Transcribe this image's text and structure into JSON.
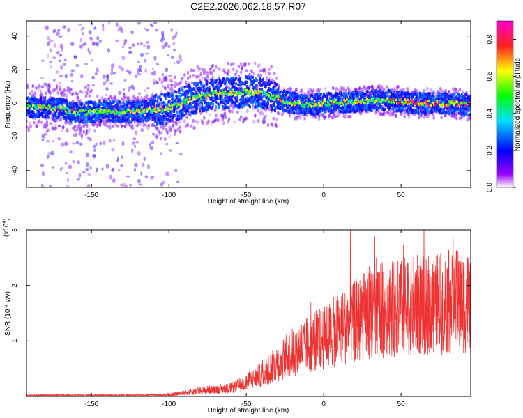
{
  "figure_title": "C2E2.2026.062.18.57.R07",
  "chart_data": [
    {
      "type": "heatmap",
      "name": "spectrogram",
      "title": "C2E2.2026.062.18.57.R07",
      "xlabel": "Height of straight line (km)",
      "ylabel": "Frequency (Hz)",
      "xlim": [
        -192,
        95
      ],
      "ylim": [
        -50,
        49
      ],
      "xticks": [
        -150,
        -100,
        -50,
        0,
        50
      ],
      "yticks": [
        -40,
        -20,
        0,
        20,
        40
      ],
      "ridge": {
        "x": [
          -192,
          -170,
          -160,
          -150,
          -140,
          -120,
          -100,
          -90,
          -80,
          -70,
          -60,
          -50,
          -40,
          -30,
          -20,
          -10,
          0,
          20,
          40,
          60,
          80,
          95
        ],
        "freq_hz": [
          -2,
          -3,
          -6,
          -5,
          -5,
          -5,
          -3,
          1,
          4,
          6,
          6,
          7,
          6,
          3,
          0,
          -1,
          0,
          1,
          2,
          0,
          0,
          -1
        ]
      },
      "colorbar": {
        "label": "Normalized spectral amplitude",
        "range": [
          0.0,
          0.9
        ],
        "ticks": [
          0.0,
          0.2,
          0.4,
          0.6,
          0.8
        ],
        "tick_labels": [
          "0.0",
          "0.2",
          "0.4",
          "0.6",
          "0.8"
        ]
      }
    },
    {
      "type": "line",
      "name": "snr",
      "xlabel": "Height of straight line (km)",
      "ylabel": "SNR (10 * v/v)",
      "y_multiplier": "(x10",
      "y_multiplier_exp": "4",
      "y_multiplier_close": ")",
      "xlim": [
        -192,
        95
      ],
      "ylim": [
        0,
        3
      ],
      "xticks": [
        -150,
        -100,
        -50,
        0,
        50
      ],
      "yticks": [
        1,
        2,
        3
      ],
      "color": "#ee3333",
      "envelope": {
        "x": [
          -192,
          -120,
          -100,
          -85,
          -75,
          -60,
          -50,
          -40,
          -30,
          -20,
          -10,
          0,
          10,
          20,
          30,
          40,
          50,
          60,
          70,
          80,
          95
        ],
        "mean": [
          0.02,
          0.02,
          0.03,
          0.08,
          0.12,
          0.15,
          0.25,
          0.4,
          0.6,
          0.8,
          0.95,
          1.05,
          1.2,
          1.35,
          1.5,
          1.55,
          1.6,
          1.65,
          1.65,
          1.7,
          1.7
        ]
      }
    }
  ]
}
